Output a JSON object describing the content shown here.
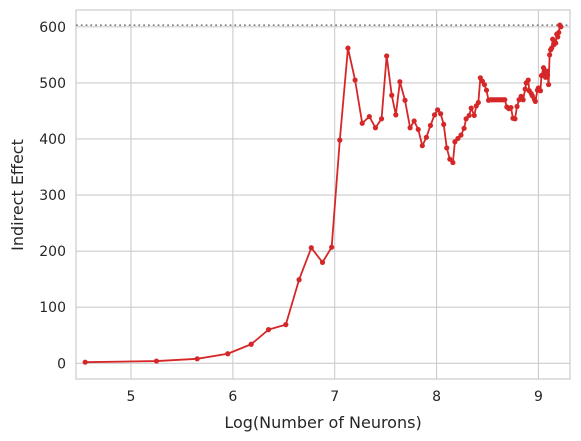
{
  "chart_data": {
    "type": "line",
    "title": "",
    "xlabel": "Log(Number of Neurons)",
    "ylabel": "Indirect Effect",
    "xlim": [
      4.46,
      9.31
    ],
    "ylim": [
      -28,
      630
    ],
    "xticks": [
      5,
      6,
      7,
      8,
      9
    ],
    "xtick_labels": [
      "5",
      "6",
      "7",
      "8",
      "9"
    ],
    "yticks": [
      0,
      100,
      200,
      300,
      400,
      500,
      600
    ],
    "ytick_labels": [
      "0",
      "100",
      "200",
      "300",
      "400",
      "500",
      "600"
    ],
    "grid": true,
    "legend": "none",
    "reference_line": {
      "y": 603,
      "style": "dotted",
      "color": "#808080"
    },
    "series": [
      {
        "color": "#d62728",
        "marker": "circle",
        "x": [
          4.55,
          5.25,
          5.65,
          5.95,
          6.18,
          6.35,
          6.52,
          6.65,
          6.77,
          6.88,
          6.97,
          7.05,
          7.13,
          7.2,
          7.27,
          7.34,
          7.4,
          7.46,
          7.51,
          7.56,
          7.6,
          7.64,
          7.69,
          7.74,
          7.78,
          7.82,
          7.86,
          7.9,
          7.94,
          7.98,
          8.01,
          8.04,
          8.07,
          8.1,
          8.13,
          8.16,
          8.18,
          8.21,
          8.24,
          8.27,
          8.29,
          8.32,
          8.34,
          8.37,
          8.39,
          8.41,
          8.43,
          8.45,
          8.47,
          8.49,
          8.51,
          8.53,
          8.55,
          8.57,
          8.59,
          8.61,
          8.63,
          8.65,
          8.67,
          8.69,
          8.71,
          8.73,
          8.75,
          8.77,
          8.79,
          8.81,
          8.83,
          8.85,
          8.87,
          8.88,
          8.9,
          8.91,
          8.93,
          8.94,
          8.96,
          8.97,
          8.99,
          9.0,
          9.02,
          9.03,
          9.05,
          9.06,
          9.07,
          9.08,
          9.09,
          9.1,
          9.11,
          9.12,
          9.13,
          9.14,
          9.15,
          9.16,
          9.17,
          9.18,
          9.19,
          9.2,
          9.21,
          9.22
        ],
        "y": [
          2,
          4,
          8,
          17,
          34,
          60,
          69,
          149,
          206,
          180,
          207,
          398,
          562,
          505,
          428,
          440,
          420,
          436,
          548,
          478,
          443,
          502,
          469,
          420,
          432,
          417,
          388,
          403,
          424,
          443,
          452,
          445,
          426,
          384,
          364,
          358,
          395,
          401,
          407,
          419,
          436,
          442,
          455,
          442,
          459,
          465,
          509,
          503,
          497,
          487,
          469,
          470,
          470,
          470,
          470,
          470,
          470,
          470,
          470,
          457,
          454,
          456,
          437,
          436,
          458,
          470,
          476,
          470,
          489,
          500,
          505,
          486,
          481,
          477,
          471,
          467,
          487,
          491,
          486,
          513,
          527,
          517,
          510,
          521,
          514,
          497,
          550,
          559,
          562,
          578,
          568,
          573,
          571,
          587,
          582,
          590,
          603,
          600
        ]
      }
    ]
  }
}
